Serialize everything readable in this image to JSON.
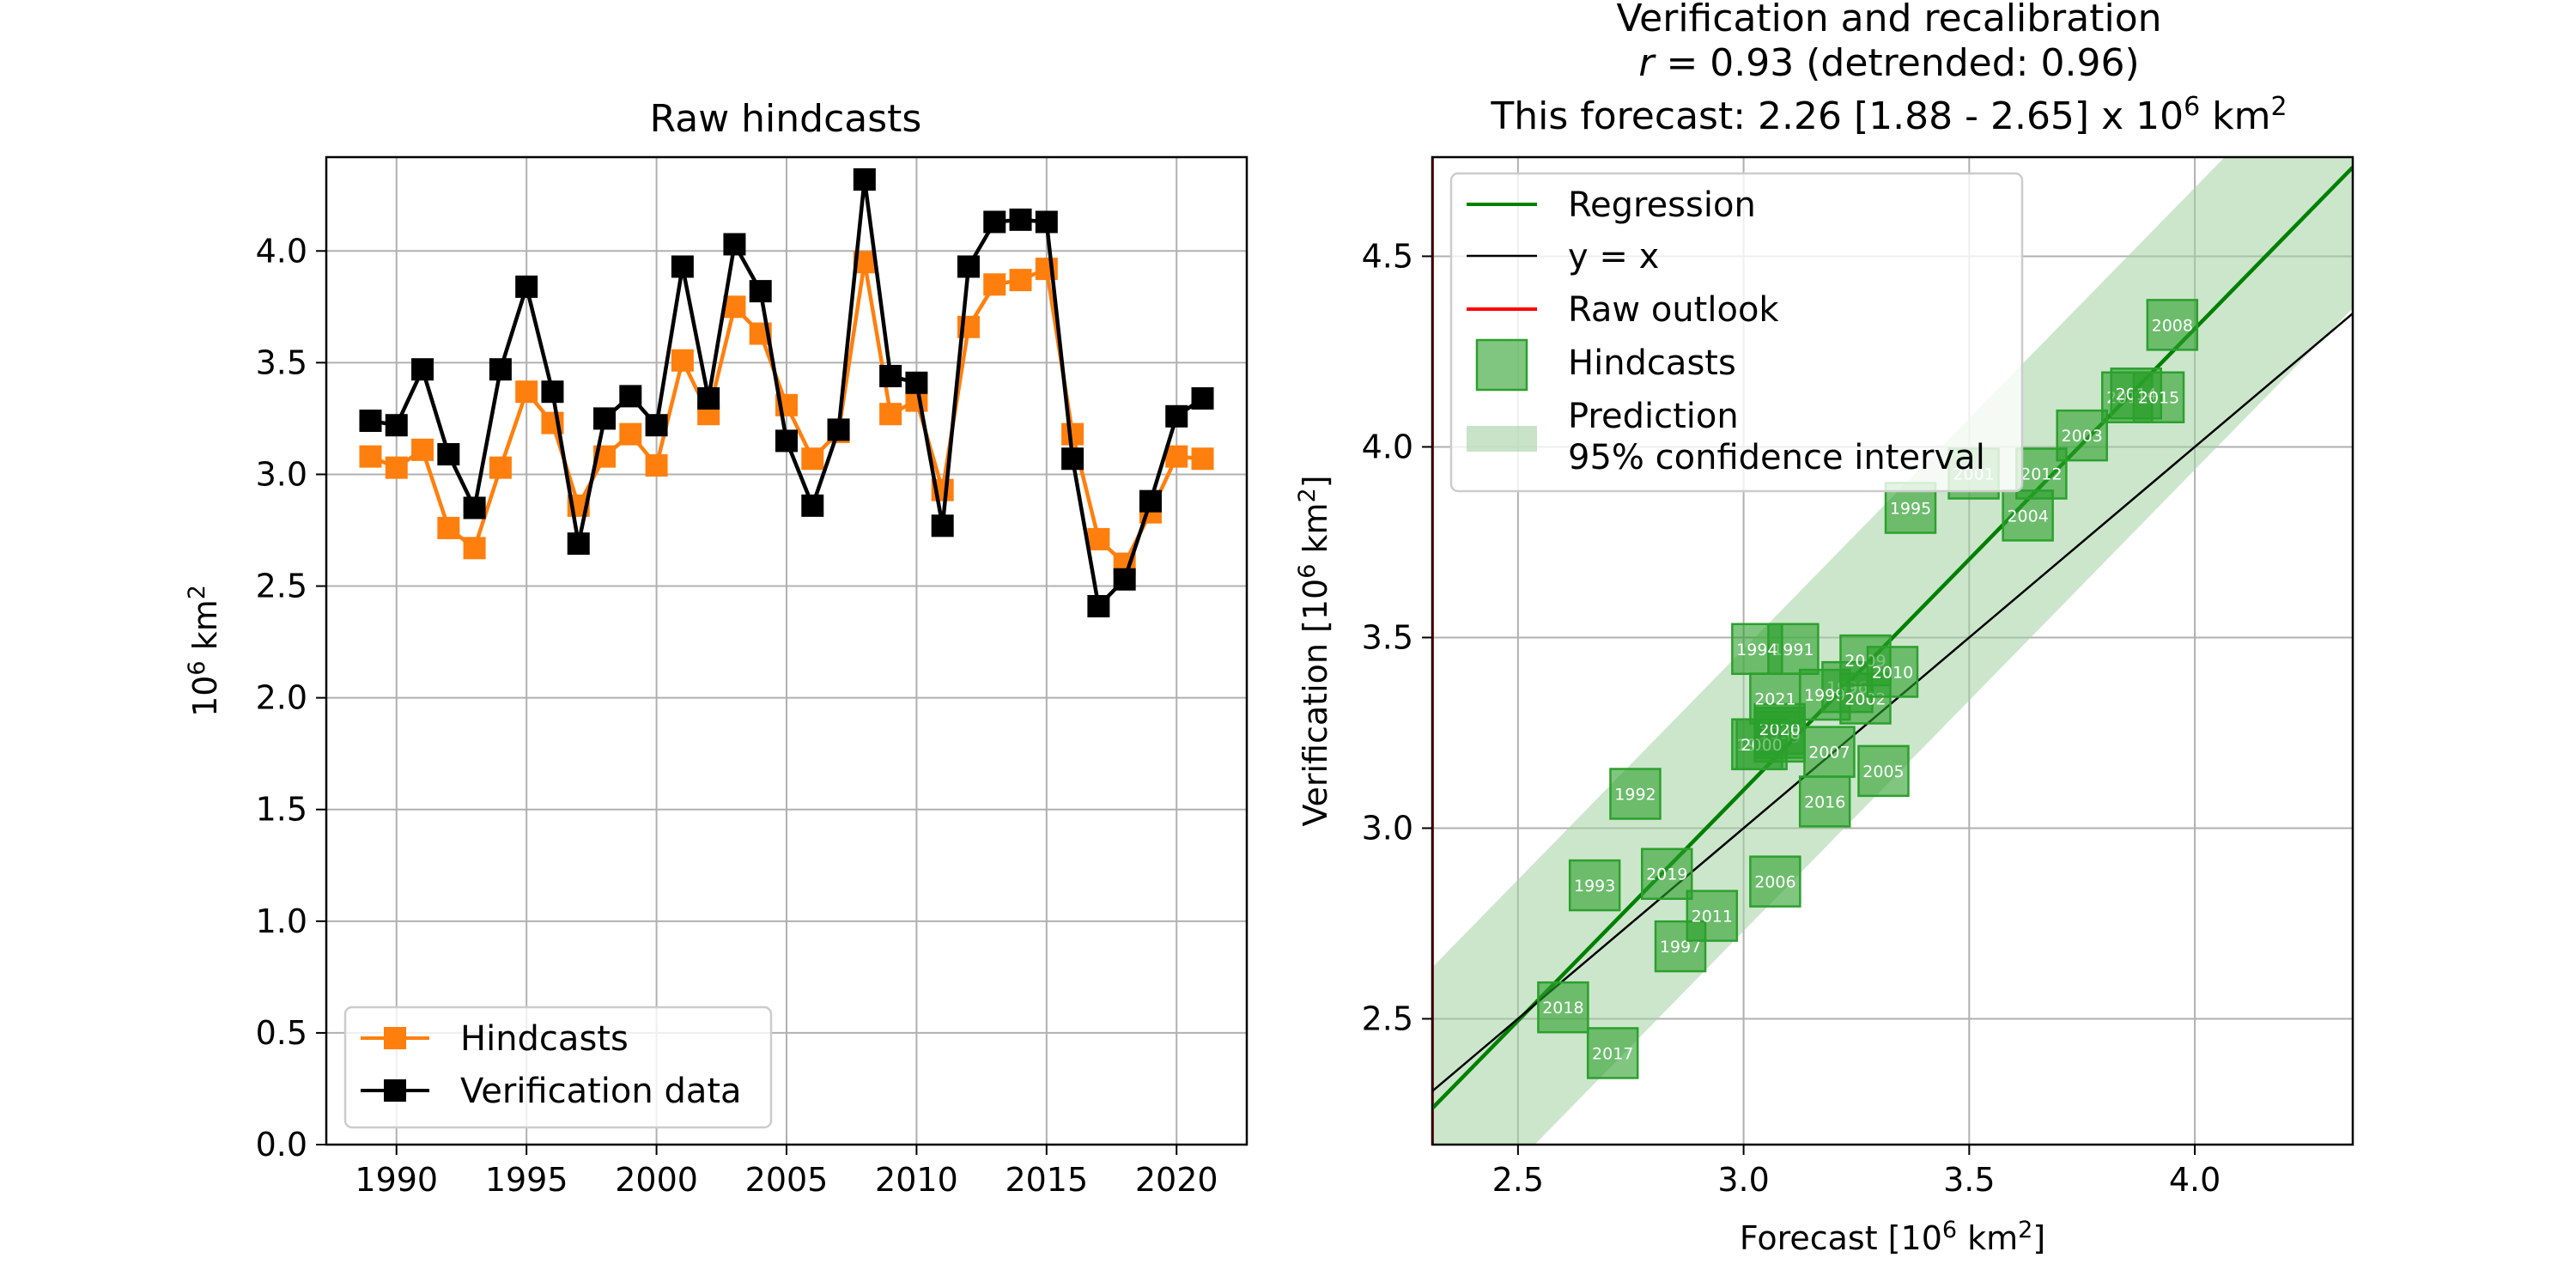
{
  "chart_data": [
    {
      "type": "line",
      "title": "Raw hindcasts",
      "xlabel": "",
      "ylabel_base": "10",
      "ylabel_exp": "6",
      "ylabel_unit": " km",
      "ylabel_unit_exp": "2",
      "xlim": [
        1987.3,
        2022.7
      ],
      "ylim": [
        0,
        4.42
      ],
      "xticks": [
        1990,
        1995,
        2000,
        2005,
        2010,
        2015,
        2020
      ],
      "yticks": [
        0.0,
        0.5,
        1.0,
        1.5,
        2.0,
        2.5,
        3.0,
        3.5,
        4.0
      ],
      "grid": true,
      "legend_position": "lower-left",
      "x": [
        1989,
        1990,
        1991,
        1992,
        1993,
        1994,
        1995,
        1996,
        1997,
        1998,
        1999,
        2000,
        2001,
        2002,
        2003,
        2004,
        2005,
        2006,
        2007,
        2008,
        2009,
        2010,
        2011,
        2012,
        2013,
        2014,
        2015,
        2016,
        2017,
        2018,
        2019,
        2020,
        2021
      ],
      "series": [
        {
          "name": "Hindcasts",
          "color": "#ff7f0e",
          "values": [
            3.08,
            3.03,
            3.11,
            2.76,
            2.67,
            3.03,
            3.37,
            3.23,
            2.86,
            3.08,
            3.18,
            3.04,
            3.51,
            3.27,
            3.75,
            3.63,
            3.31,
            3.07,
            3.19,
            3.95,
            3.27,
            3.33,
            2.93,
            3.66,
            3.85,
            3.87,
            3.92,
            3.18,
            2.71,
            2.6,
            2.83,
            3.08,
            3.07
          ]
        },
        {
          "name": "Verification data",
          "color": "#000000",
          "values": [
            3.24,
            3.22,
            3.47,
            3.09,
            2.85,
            3.47,
            3.84,
            3.37,
            2.69,
            3.25,
            3.35,
            3.22,
            3.93,
            3.34,
            4.03,
            3.82,
            3.15,
            2.86,
            3.2,
            4.32,
            3.44,
            3.41,
            2.77,
            3.93,
            4.13,
            4.14,
            4.13,
            3.07,
            2.41,
            2.53,
            2.88,
            3.26,
            3.34
          ]
        }
      ]
    },
    {
      "type": "scatter",
      "title_line1": "Verification and recalibration",
      "title_line2_r": "r",
      "title_line2_rest": " = 0.93 (detrended: 0.96)",
      "title_line3": "This forecast: 2.26 [1.88 - 2.65] x 10",
      "title_line3_exp": "6",
      "title_line3_unit": " km",
      "title_line3_unit_exp": "2",
      "xlabel_base": "Forecast [10",
      "xlabel_exp": "6",
      "xlabel_unit": " km",
      "xlabel_unit_exp": "2",
      "xlabel_end": "]",
      "ylabel_base": "Verification [10",
      "ylabel_exp": "6",
      "ylabel_unit": " km",
      "ylabel_unit_exp": "2",
      "ylabel_end": "]",
      "xlim": [
        2.31,
        4.35
      ],
      "ylim": [
        2.17,
        4.76
      ],
      "xticks": [
        2.5,
        3.0,
        3.5,
        4.0
      ],
      "yticks": [
        2.5,
        3.0,
        3.5,
        4.0,
        4.5
      ],
      "grid": true,
      "legend_position": "upper-left",
      "legend": [
        "Regression",
        "y = x",
        "Raw outlook",
        "Hindcasts",
        "Prediction",
        "95% confidence interval"
      ],
      "colors": {
        "regression": "#008000",
        "identity": "#000000",
        "raw_outlook": "#ff0000",
        "hindcasts": "#2ca02c",
        "ci_band": "#a3d1a3"
      },
      "regression": {
        "slope": 1.21,
        "intercept": -0.53,
        "ci_halfwidth": 0.37
      },
      "raw_outlook_x": 2.31,
      "points": [
        {
          "year": "1989",
          "x": 3.08,
          "y": 3.24
        },
        {
          "year": "1990",
          "x": 3.03,
          "y": 3.22
        },
        {
          "year": "1991",
          "x": 3.11,
          "y": 3.47
        },
        {
          "year": "1992",
          "x": 2.76,
          "y": 3.09
        },
        {
          "year": "1993",
          "x": 2.67,
          "y": 2.85
        },
        {
          "year": "1994",
          "x": 3.03,
          "y": 3.47
        },
        {
          "year": "1995",
          "x": 3.37,
          "y": 3.84
        },
        {
          "year": "1996",
          "x": 3.23,
          "y": 3.37
        },
        {
          "year": "1997",
          "x": 2.86,
          "y": 2.69
        },
        {
          "year": "1998",
          "x": 3.08,
          "y": 3.25
        },
        {
          "year": "1999",
          "x": 3.18,
          "y": 3.35
        },
        {
          "year": "2000",
          "x": 3.04,
          "y": 3.22
        },
        {
          "year": "2001",
          "x": 3.51,
          "y": 3.93
        },
        {
          "year": "2002",
          "x": 3.27,
          "y": 3.34
        },
        {
          "year": "2003",
          "x": 3.75,
          "y": 4.03
        },
        {
          "year": "2004",
          "x": 3.63,
          "y": 3.82
        },
        {
          "year": "2005",
          "x": 3.31,
          "y": 3.15
        },
        {
          "year": "2006",
          "x": 3.07,
          "y": 2.86
        },
        {
          "year": "2007",
          "x": 3.19,
          "y": 3.2
        },
        {
          "year": "2008",
          "x": 3.95,
          "y": 4.32
        },
        {
          "year": "2009",
          "x": 3.27,
          "y": 3.44
        },
        {
          "year": "2010",
          "x": 3.33,
          "y": 3.41
        },
        {
          "year": "2011",
          "x": 2.93,
          "y": 2.77
        },
        {
          "year": "2012",
          "x": 3.66,
          "y": 3.93
        },
        {
          "year": "2013",
          "x": 3.85,
          "y": 4.13
        },
        {
          "year": "2014",
          "x": 3.87,
          "y": 4.14
        },
        {
          "year": "2015",
          "x": 3.92,
          "y": 4.13
        },
        {
          "year": "2016",
          "x": 3.18,
          "y": 3.07
        },
        {
          "year": "2017",
          "x": 2.71,
          "y": 2.41
        },
        {
          "year": "2018",
          "x": 2.6,
          "y": 2.53
        },
        {
          "year": "2019",
          "x": 2.83,
          "y": 2.88
        },
        {
          "year": "2020",
          "x": 3.08,
          "y": 3.26
        },
        {
          "year": "2021",
          "x": 3.07,
          "y": 3.34
        }
      ]
    }
  ]
}
